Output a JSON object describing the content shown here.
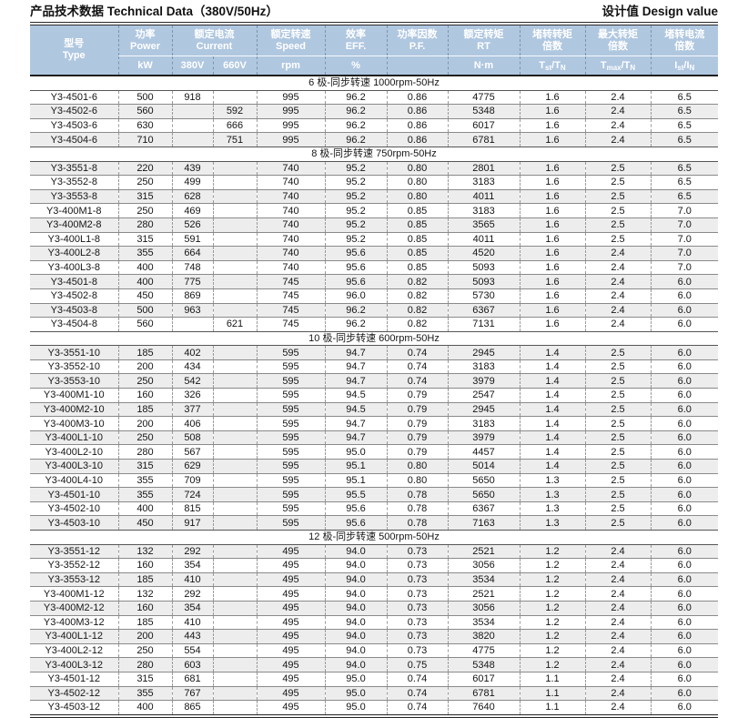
{
  "header": {
    "title_left": "产品技术数据 Technical Data（380V/50Hz）",
    "title_right": "设计值 Design value"
  },
  "colors": {
    "header_bg": "#b0c7e0",
    "stripe": "#ededed",
    "line_dark": "#2a2a2a",
    "header_text": "#ffffff"
  },
  "table": {
    "columns": {
      "type": {
        "cn": "型号",
        "en": "Type"
      },
      "power": {
        "cn": "功率",
        "en": "Power"
      },
      "current": {
        "cn": "额定电流",
        "en": "Current"
      },
      "speed": {
        "cn": "额定转速",
        "en": "Speed"
      },
      "eff": {
        "cn": "效率",
        "en": "EFF."
      },
      "pf": {
        "cn": "功率因数",
        "en": "P.F."
      },
      "rt": {
        "cn": "额定转矩",
        "en": "RT"
      },
      "tst": {
        "cn": "堵转转矩",
        "cn2": "倍数"
      },
      "tmax": {
        "cn": "最大转矩",
        "cn2": "倍数"
      },
      "ist": {
        "cn": "堵转电流",
        "cn2": "倍数"
      }
    },
    "units": {
      "kw": "kW",
      "v380": "380V",
      "v660": "660V",
      "rpm": "rpm",
      "percent": "%",
      "pf": "",
      "nm": "N·m",
      "tst": {
        "b1": "T",
        "s1": "st",
        "b2": "/T",
        "s2": "N"
      },
      "tmax": {
        "b1": "T",
        "s1": "max",
        "b2": "/T",
        "s2": "N"
      },
      "ist": {
        "b1": "I",
        "s1": "st",
        "b2": "/I",
        "s2": "N"
      }
    },
    "sections": [
      {
        "title": "6 极-同步转速 1000rpm-50Hz",
        "shade_first": false,
        "rows": [
          [
            "Y3-4501-6",
            "500",
            "918",
            "",
            "995",
            "96.2",
            "0.86",
            "4775",
            "1.6",
            "2.4",
            "6.5"
          ],
          [
            "Y3-4502-6",
            "560",
            "",
            "592",
            "995",
            "96.2",
            "0.86",
            "5348",
            "1.6",
            "2.4",
            "6.5"
          ],
          [
            "Y3-4503-6",
            "630",
            "",
            "666",
            "995",
            "96.2",
            "0.86",
            "6017",
            "1.6",
            "2.4",
            "6.5"
          ],
          [
            "Y3-4504-6",
            "710",
            "",
            "751",
            "995",
            "96.2",
            "0.86",
            "6781",
            "1.6",
            "2.4",
            "6.5"
          ]
        ]
      },
      {
        "title": "8 极-同步转速 750rpm-50Hz",
        "shade_first": true,
        "rows": [
          [
            "Y3-3551-8",
            "220",
            "439",
            "",
            "740",
            "95.2",
            "0.80",
            "2801",
            "1.6",
            "2.5",
            "6.5"
          ],
          [
            "Y3-3552-8",
            "250",
            "499",
            "",
            "740",
            "95.2",
            "0.80",
            "3183",
            "1.6",
            "2.5",
            "6.5"
          ],
          [
            "Y3-3553-8",
            "315",
            "628",
            "",
            "740",
            "95.2",
            "0.80",
            "4011",
            "1.6",
            "2.5",
            "6.5"
          ],
          [
            "Y3-400M1-8",
            "250",
            "469",
            "",
            "740",
            "95.2",
            "0.85",
            "3183",
            "1.6",
            "2.5",
            "7.0"
          ],
          [
            "Y3-400M2-8",
            "280",
            "526",
            "",
            "740",
            "95.2",
            "0.85",
            "3565",
            "1.6",
            "2.5",
            "7.0"
          ],
          [
            "Y3-400L1-8",
            "315",
            "591",
            "",
            "740",
            "95.2",
            "0.85",
            "4011",
            "1.6",
            "2.5",
            "7.0"
          ],
          [
            "Y3-400L2-8",
            "355",
            "664",
            "",
            "740",
            "95.6",
            "0.85",
            "4520",
            "1.6",
            "2.4",
            "7.0"
          ],
          [
            "Y3-400L3-8",
            "400",
            "748",
            "",
            "740",
            "95.6",
            "0.85",
            "5093",
            "1.6",
            "2.4",
            "7.0"
          ],
          [
            "Y3-4501-8",
            "400",
            "775",
            "",
            "745",
            "95.6",
            "0.82",
            "5093",
            "1.6",
            "2.4",
            "6.0"
          ],
          [
            "Y3-4502-8",
            "450",
            "869",
            "",
            "745",
            "96.0",
            "0.82",
            "5730",
            "1.6",
            "2.4",
            "6.0"
          ],
          [
            "Y3-4503-8",
            "500",
            "963",
            "",
            "745",
            "96.2",
            "0.82",
            "6367",
            "1.6",
            "2.4",
            "6.0"
          ],
          [
            "Y3-4504-8",
            "560",
            "",
            "621",
            "745",
            "96.2",
            "0.82",
            "7131",
            "1.6",
            "2.4",
            "6.0"
          ]
        ]
      },
      {
        "title": "10 极-同步转速 600rpm-50Hz",
        "shade_first": true,
        "rows": [
          [
            "Y3-3551-10",
            "185",
            "402",
            "",
            "595",
            "94.7",
            "0.74",
            "2945",
            "1.4",
            "2.5",
            "6.0"
          ],
          [
            "Y3-3552-10",
            "200",
            "434",
            "",
            "595",
            "94.7",
            "0.74",
            "3183",
            "1.4",
            "2.5",
            "6.0"
          ],
          [
            "Y3-3553-10",
            "250",
            "542",
            "",
            "595",
            "94.7",
            "0.74",
            "3979",
            "1.4",
            "2.5",
            "6.0"
          ],
          [
            "Y3-400M1-10",
            "160",
            "326",
            "",
            "595",
            "94.5",
            "0.79",
            "2547",
            "1.4",
            "2.5",
            "6.0"
          ],
          [
            "Y3-400M2-10",
            "185",
            "377",
            "",
            "595",
            "94.5",
            "0.79",
            "2945",
            "1.4",
            "2.5",
            "6.0"
          ],
          [
            "Y3-400M3-10",
            "200",
            "406",
            "",
            "595",
            "94.7",
            "0.79",
            "3183",
            "1.4",
            "2.5",
            "6.0"
          ],
          [
            "Y3-400L1-10",
            "250",
            "508",
            "",
            "595",
            "94.7",
            "0.79",
            "3979",
            "1.4",
            "2.5",
            "6.0"
          ],
          [
            "Y3-400L2-10",
            "280",
            "567",
            "",
            "595",
            "95.0",
            "0.79",
            "4457",
            "1.4",
            "2.5",
            "6.0"
          ],
          [
            "Y3-400L3-10",
            "315",
            "629",
            "",
            "595",
            "95.1",
            "0.80",
            "5014",
            "1.4",
            "2.5",
            "6.0"
          ],
          [
            "Y3-400L4-10",
            "355",
            "709",
            "",
            "595",
            "95.1",
            "0.80",
            "5650",
            "1.3",
            "2.5",
            "6.0"
          ],
          [
            "Y3-4501-10",
            "355",
            "724",
            "",
            "595",
            "95.5",
            "0.78",
            "5650",
            "1.3",
            "2.5",
            "6.0"
          ],
          [
            "Y3-4502-10",
            "400",
            "815",
            "",
            "595",
            "95.6",
            "0.78",
            "6367",
            "1.3",
            "2.5",
            "6.0"
          ],
          [
            "Y3-4503-10",
            "450",
            "917",
            "",
            "595",
            "95.6",
            "0.78",
            "7163",
            "1.3",
            "2.5",
            "6.0"
          ]
        ]
      },
      {
        "title": "12 极-同步转速 500rpm-50Hz",
        "shade_first": true,
        "rows": [
          [
            "Y3-3551-12",
            "132",
            "292",
            "",
            "495",
            "94.0",
            "0.73",
            "2521",
            "1.2",
            "2.4",
            "6.0"
          ],
          [
            "Y3-3552-12",
            "160",
            "354",
            "",
            "495",
            "94.0",
            "0.73",
            "3056",
            "1.2",
            "2.4",
            "6.0"
          ],
          [
            "Y3-3553-12",
            "185",
            "410",
            "",
            "495",
            "94.0",
            "0.73",
            "3534",
            "1.2",
            "2.4",
            "6.0"
          ],
          [
            "Y3-400M1-12",
            "132",
            "292",
            "",
            "495",
            "94.0",
            "0.73",
            "2521",
            "1.2",
            "2.4",
            "6.0"
          ],
          [
            "Y3-400M2-12",
            "160",
            "354",
            "",
            "495",
            "94.0",
            "0.73",
            "3056",
            "1.2",
            "2.4",
            "6.0"
          ],
          [
            "Y3-400M3-12",
            "185",
            "410",
            "",
            "495",
            "94.0",
            "0.73",
            "3534",
            "1.2",
            "2.4",
            "6.0"
          ],
          [
            "Y3-400L1-12",
            "200",
            "443",
            "",
            "495",
            "94.0",
            "0.73",
            "3820",
            "1.2",
            "2.4",
            "6.0"
          ],
          [
            "Y3-400L2-12",
            "250",
            "554",
            "",
            "495",
            "94.0",
            "0.73",
            "4775",
            "1.2",
            "2.4",
            "6.0"
          ],
          [
            "Y3-400L3-12",
            "280",
            "603",
            "",
            "495",
            "94.0",
            "0.75",
            "5348",
            "1.2",
            "2.4",
            "6.0"
          ],
          [
            "Y3-4501-12",
            "315",
            "681",
            "",
            "495",
            "95.0",
            "0.74",
            "6017",
            "1.1",
            "2.4",
            "6.0"
          ],
          [
            "Y3-4502-12",
            "355",
            "767",
            "",
            "495",
            "95.0",
            "0.74",
            "6781",
            "1.1",
            "2.4",
            "6.0"
          ],
          [
            "Y3-4503-12",
            "400",
            "865",
            "",
            "495",
            "95.0",
            "0.74",
            "7640",
            "1.1",
            "2.4",
            "6.0"
          ]
        ]
      }
    ]
  }
}
